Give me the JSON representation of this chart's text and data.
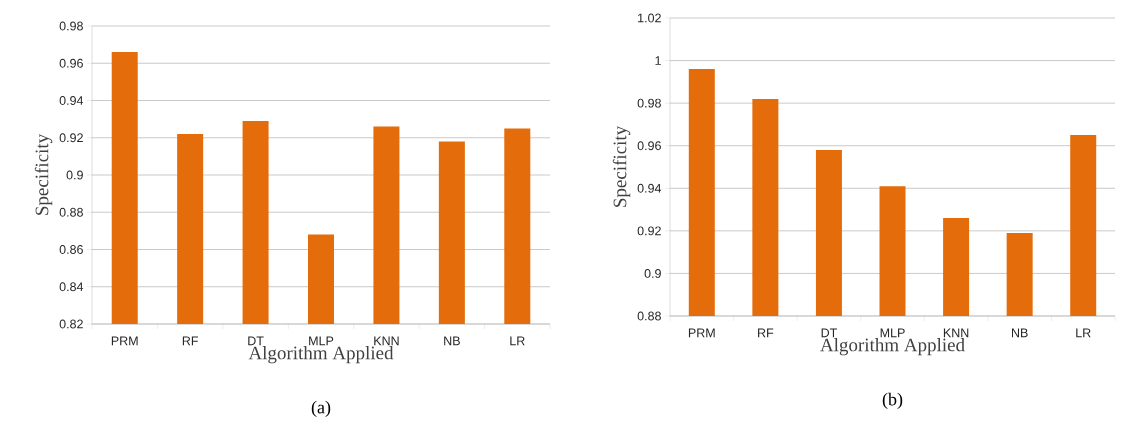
{
  "chart_data": [
    {
      "type": "bar",
      "xlabel": "Algorithm Applied",
      "ylabel": "Specificity",
      "categories": [
        "PRM",
        "RF",
        "DT",
        "MLP",
        "KNN",
        "NB",
        "LR"
      ],
      "values": [
        0.966,
        0.922,
        0.929,
        0.868,
        0.926,
        0.918,
        0.925
      ],
      "color": "#e46c0a",
      "ylim": [
        0.82,
        0.98
      ],
      "yticks": [
        0.82,
        0.84,
        0.86,
        0.88,
        0.9,
        0.92,
        0.94,
        0.96,
        0.98
      ],
      "grid": "y",
      "annotations": [
        "(a)"
      ]
    },
    {
      "type": "bar",
      "xlabel": "Algorithm Applied",
      "ylabel": "Specificity",
      "categories": [
        "PRM",
        "RF",
        "DT",
        "MLP",
        "KNN",
        "NB",
        "LR"
      ],
      "values": [
        0.996,
        0.982,
        0.958,
        0.941,
        0.926,
        0.919,
        0.965
      ],
      "color": "#e46c0a",
      "ylim": [
        0.88,
        1.02
      ],
      "yticks": [
        0.88,
        0.9,
        0.92,
        0.94,
        0.96,
        0.98,
        1,
        1.02
      ],
      "grid": "y",
      "annotations": [
        "(b)"
      ]
    }
  ]
}
